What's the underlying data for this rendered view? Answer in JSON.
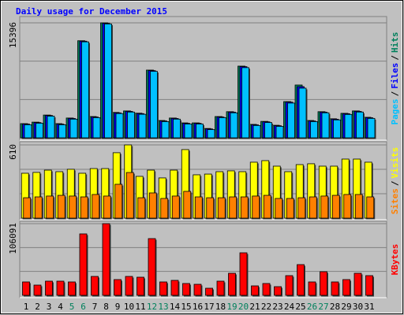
{
  "title": "Daily usage for December 2015",
  "legend_separator": "/",
  "chart_data": [
    {
      "type": "bar",
      "ylim": [
        0,
        15396
      ],
      "yticks": [
        15396
      ],
      "series": [
        {
          "name": "Pages",
          "color": "#00c0ff",
          "values": [
            1750,
            1950,
            2900,
            1750,
            2500,
            12850,
            2700,
            15250,
            3250,
            3450,
            3150,
            8900,
            2170,
            2500,
            1850,
            1850,
            1100,
            2700,
            3350,
            9400,
            1650,
            2050,
            1530,
            4650,
            6650,
            2170,
            3350,
            2400,
            3130,
            3450,
            2600
          ]
        },
        {
          "name": "Files",
          "color": "#0000ff",
          "values": [
            1840,
            2040,
            2990,
            1840,
            2590,
            12940,
            2790,
            15330,
            3340,
            3540,
            3240,
            9000,
            2260,
            2590,
            1940,
            1940,
            1190,
            2790,
            3440,
            9530,
            1740,
            2140,
            1620,
            4780,
            6850,
            2260,
            3440,
            2490,
            3220,
            3540,
            2690
          ]
        },
        {
          "name": "Hits",
          "color": "#00805c",
          "values": [
            1900,
            2100,
            3050,
            1900,
            2650,
            13000,
            2850,
            15396,
            3400,
            3600,
            3300,
            9070,
            2320,
            2650,
            2000,
            2000,
            1250,
            2850,
            3500,
            9600,
            1800,
            2200,
            1680,
            4850,
            7070,
            2320,
            3500,
            2550,
            3280,
            3600,
            2750
          ]
        }
      ]
    },
    {
      "type": "bar",
      "ylim": [
        0,
        610
      ],
      "yticks": [
        610
      ],
      "series": [
        {
          "name": "Sites",
          "color": "#ff8000",
          "values": [
            170,
            177,
            184,
            190,
            184,
            177,
            197,
            184,
            282,
            380,
            170,
            210,
            164,
            184,
            223,
            177,
            170,
            170,
            177,
            177,
            184,
            190,
            164,
            164,
            170,
            177,
            184,
            190,
            197,
            197,
            177
          ]
        },
        {
          "name": "Visits",
          "color": "#ffff00",
          "values": [
            374,
            381,
            400,
            387,
            407,
            374,
            413,
            413,
            545,
            610,
            348,
            400,
            335,
            400,
            571,
            361,
            367,
            387,
            394,
            387,
            466,
            479,
            433,
            387,
            446,
            453,
            433,
            433,
            492,
            492,
            466
          ]
        }
      ]
    },
    {
      "type": "bar",
      "ylim": [
        0,
        106091
      ],
      "yticks": [
        106091
      ],
      "categories": [
        "1",
        "2",
        "3",
        "4",
        "5",
        "6",
        "7",
        "8",
        "9",
        "10",
        "11",
        "12",
        "13",
        "14",
        "15",
        "16",
        "17",
        "18",
        "19",
        "20",
        "21",
        "22",
        "23",
        "24",
        "25",
        "26",
        "27",
        "28",
        "29",
        "30",
        "31"
      ],
      "category_colors": [
        "#000000",
        "#000000",
        "#000000",
        "#000000",
        "#00805c",
        "#00805c",
        "#000000",
        "#000000",
        "#000000",
        "#000000",
        "#000000",
        "#00805c",
        "#00805c",
        "#000000",
        "#000000",
        "#000000",
        "#000000",
        "#000000",
        "#00805c",
        "#00805c",
        "#000000",
        "#000000",
        "#000000",
        "#000000",
        "#000000",
        "#00805c",
        "#00805c",
        "#000000",
        "#000000",
        "#000000",
        "#000000"
      ],
      "series": [
        {
          "name": "KBytes",
          "color": "#ff0000",
          "values": [
            19820,
            15160,
            20990,
            20990,
            19820,
            90950,
            27980,
            106091,
            23320,
            27980,
            26820,
            83960,
            19820,
            22150,
            17490,
            16320,
            10490,
            20990,
            32650,
            62960,
            13990,
            17490,
            12830,
            29150,
            45470,
            19820,
            34980,
            19820,
            23320,
            32650,
            29150
          ]
        }
      ]
    }
  ]
}
